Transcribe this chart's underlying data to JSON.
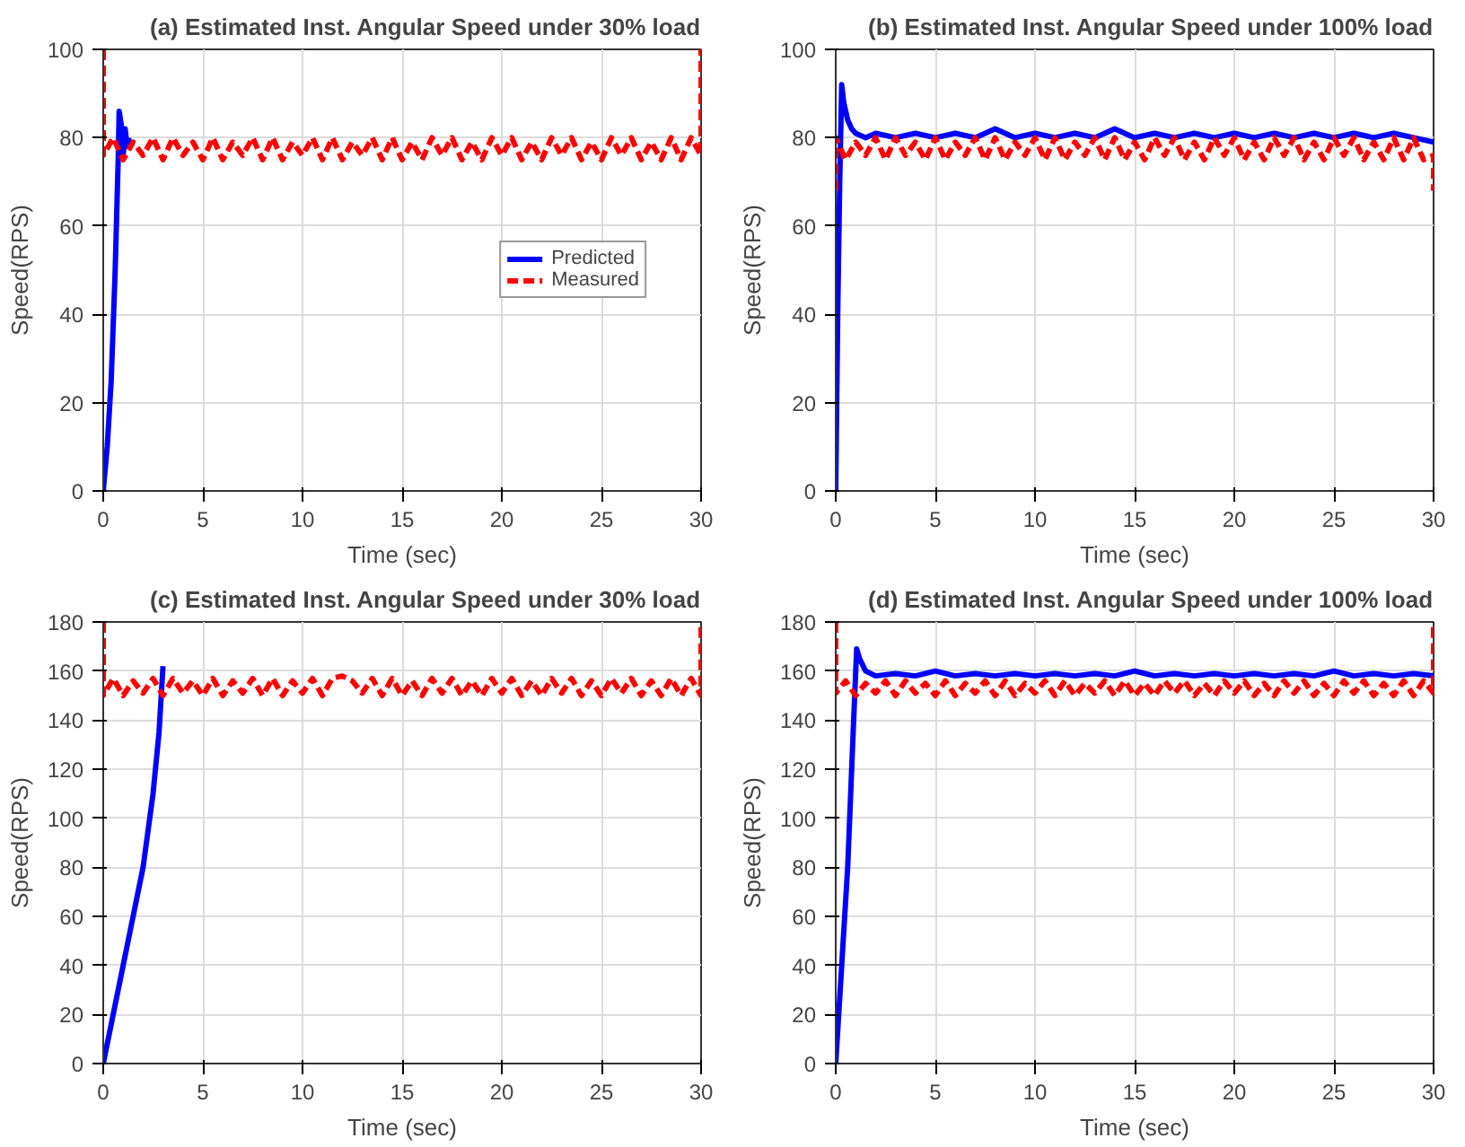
{
  "chart_data": [
    {
      "type": "line",
      "title": "(a) Estimated Inst. Angular Speed under 30% load",
      "xlabel": "Time (sec)",
      "ylabel": "Speed(RPS)",
      "xlim": [
        0,
        30
      ],
      "ylim": [
        0,
        100
      ],
      "xticks": [
        0,
        5,
        10,
        15,
        20,
        25,
        30
      ],
      "yticks": [
        0,
        20,
        40,
        60,
        80,
        100
      ],
      "grid": true,
      "legend": "right",
      "series": [
        {
          "name": "Predicted",
          "color": "#0000ff",
          "line_style": "solid",
          "x": [
            0,
            0.2,
            0.4,
            0.6,
            0.75,
            0.8,
            0.9,
            1,
            1.1,
            1.2,
            1.3
          ],
          "values": [
            0,
            10,
            25,
            50,
            75,
            86,
            83,
            76,
            82,
            78,
            80
          ]
        },
        {
          "name": "Measured",
          "color": "#ff0000",
          "line_style": "dashed",
          "x": [
            0,
            0,
            0.5,
            1,
            1.5,
            2,
            2.5,
            3,
            3.5,
            4,
            4.5,
            5,
            5.5,
            6,
            6.5,
            7,
            7.5,
            8,
            8.5,
            9,
            9.5,
            10,
            10.5,
            11,
            11.5,
            12,
            12.5,
            13,
            13.5,
            14,
            14.5,
            15,
            15.5,
            16,
            16.5,
            17,
            17.5,
            18,
            18.5,
            19,
            19.5,
            20,
            20.5,
            21,
            21.5,
            22,
            22.5,
            23,
            23.5,
            24,
            24.5,
            25,
            25.5,
            26,
            26.5,
            27,
            27.5,
            28,
            28.5,
            29,
            29.5,
            30,
            30
          ],
          "values": [
            100,
            76,
            80,
            75,
            79,
            76,
            80,
            75,
            80,
            76,
            79,
            75,
            80,
            75,
            79,
            76,
            80,
            75,
            80,
            75,
            79,
            76,
            80,
            75,
            80,
            75,
            79,
            76,
            80,
            75,
            80,
            75,
            79,
            75,
            80,
            76,
            80,
            75,
            79,
            75,
            80,
            76,
            80,
            75,
            79,
            75,
            80,
            76,
            80,
            75,
            79,
            75,
            80,
            76,
            80,
            75,
            79,
            75,
            80,
            75,
            80,
            76,
            100
          ]
        }
      ]
    },
    {
      "type": "line",
      "title": "(b) Estimated Inst. Angular Speed under 100% load",
      "xlabel": "Time (sec)",
      "ylabel": "Speed(RPS)",
      "xlim": [
        0,
        30
      ],
      "ylim": [
        0,
        100
      ],
      "xticks": [
        0,
        5,
        10,
        15,
        20,
        25,
        30
      ],
      "yticks": [
        0,
        20,
        40,
        60,
        80,
        100
      ],
      "grid": true,
      "series": [
        {
          "color": "#0000ff",
          "line_style": "solid",
          "x": [
            0,
            0.1,
            0.2,
            0.3,
            0.4,
            0.6,
            0.8,
            1,
            1.5,
            2,
            3,
            4,
            5,
            6,
            7,
            8,
            9,
            10,
            11,
            12,
            13,
            14,
            15,
            16,
            17,
            18,
            19,
            20,
            21,
            22,
            23,
            24,
            25,
            26,
            27,
            28,
            29,
            30
          ],
          "values": [
            0,
            40,
            70,
            92,
            88,
            84,
            82,
            81,
            80,
            81,
            80,
            81,
            80,
            81,
            80,
            82,
            80,
            81,
            80,
            81,
            80,
            82,
            80,
            81,
            80,
            81,
            80,
            81,
            80,
            81,
            80,
            81,
            80,
            81,
            80,
            81,
            80,
            79
          ]
        },
        {
          "color": "#ff0000",
          "line_style": "dashed",
          "x": [
            0,
            0,
            0.5,
            1,
            1.5,
            2,
            2.5,
            3,
            3.5,
            4,
            4.5,
            5,
            5.5,
            6,
            6.5,
            7,
            7.5,
            8,
            8.5,
            9,
            9.5,
            10,
            10.5,
            11,
            11.5,
            12,
            12.5,
            13,
            13.5,
            14,
            14.5,
            15,
            15.5,
            16,
            16.5,
            17,
            17.5,
            18,
            18.5,
            19,
            19.5,
            20,
            20.5,
            21,
            21.5,
            22,
            22.5,
            23,
            23.5,
            24,
            24.5,
            25,
            25.5,
            26,
            26.5,
            27,
            27.5,
            28,
            28.5,
            29,
            29.5,
            30,
            30
          ],
          "values": [
            68,
            80,
            75,
            79,
            76,
            80,
            75,
            80,
            76,
            79,
            75,
            80,
            75,
            79,
            76,
            80,
            75,
            80,
            75,
            79,
            76,
            80,
            75,
            80,
            75,
            79,
            76,
            80,
            75,
            80,
            75,
            79,
            75,
            80,
            76,
            80,
            75,
            79,
            75,
            80,
            76,
            80,
            75,
            79,
            75,
            80,
            76,
            80,
            75,
            79,
            75,
            80,
            76,
            80,
            75,
            79,
            75,
            80,
            75,
            80,
            75,
            76,
            68
          ]
        }
      ]
    },
    {
      "type": "line",
      "title": "(c) Estimated Inst. Angular Speed under 30% load",
      "xlabel": "Time (sec)",
      "ylabel": "Speed(RPS)",
      "xlim": [
        0,
        30
      ],
      "ylim": [
        0,
        180
      ],
      "xticks": [
        0,
        5,
        10,
        15,
        20,
        25,
        30
      ],
      "yticks": [
        0,
        20,
        40,
        60,
        80,
        100,
        120,
        140,
        160,
        180
      ],
      "grid": true,
      "series": [
        {
          "color": "#0000ff",
          "line_style": "solid",
          "x": [
            0,
            0.5,
            1,
            1.5,
            2,
            2.5,
            2.8,
            3
          ],
          "values": [
            0,
            20,
            40,
            60,
            80,
            110,
            135,
            162
          ]
        },
        {
          "color": "#ff0000",
          "line_style": "dashed",
          "x": [
            0,
            0,
            0.5,
            1,
            1.5,
            2,
            2.5,
            3,
            3.5,
            4,
            4.5,
            5,
            5.5,
            6,
            6.5,
            7,
            7.5,
            8,
            8.5,
            9,
            9.5,
            10,
            10.5,
            11,
            11.5,
            12,
            12.5,
            13,
            13.5,
            14,
            14.5,
            15,
            15.5,
            16,
            16.5,
            17,
            17.5,
            18,
            18.5,
            19,
            19.5,
            20,
            20.5,
            21,
            21.5,
            22,
            22.5,
            23,
            23.5,
            24,
            24.5,
            25,
            25.5,
            26,
            26.5,
            27,
            27.5,
            28,
            28.5,
            29,
            29.5,
            30,
            30
          ],
          "values": [
            180,
            150,
            157,
            150,
            156,
            151,
            157,
            150,
            157,
            151,
            156,
            150,
            157,
            150,
            156,
            151,
            157,
            150,
            157,
            150,
            156,
            151,
            157,
            150,
            157,
            158,
            156,
            151,
            157,
            150,
            157,
            150,
            156,
            150,
            157,
            151,
            157,
            150,
            156,
            150,
            157,
            151,
            157,
            150,
            156,
            150,
            157,
            151,
            157,
            150,
            156,
            150,
            157,
            151,
            157,
            150,
            156,
            150,
            157,
            150,
            157,
            150,
            180
          ]
        }
      ]
    },
    {
      "type": "line",
      "title": "(d) Estimated Inst. Angular Speed under 100% load",
      "xlabel": "Time (sec)",
      "ylabel": "Speed(RPS)",
      "xlim": [
        0,
        30
      ],
      "ylim": [
        0,
        180
      ],
      "xticks": [
        0,
        5,
        10,
        15,
        20,
        25,
        30
      ],
      "yticks": [
        0,
        20,
        40,
        60,
        80,
        100,
        120,
        140,
        160,
        180
      ],
      "grid": true,
      "series": [
        {
          "color": "#0000ff",
          "line_style": "solid",
          "x": [
            0,
            0.3,
            0.6,
            0.9,
            1.05,
            1.2,
            1.5,
            2,
            3,
            4,
            5,
            6,
            7,
            8,
            9,
            10,
            11,
            12,
            13,
            14,
            15,
            16,
            17,
            18,
            19,
            20,
            21,
            22,
            23,
            24,
            25,
            26,
            27,
            28,
            29,
            30
          ],
          "values": [
            0,
            40,
            80,
            140,
            169,
            165,
            160,
            158,
            159,
            158,
            160,
            158,
            159,
            158,
            159,
            158,
            159,
            158,
            159,
            158,
            160,
            158,
            159,
            158,
            159,
            158,
            159,
            158,
            159,
            158,
            160,
            158,
            159,
            158,
            159,
            158
          ]
        },
        {
          "color": "#ff0000",
          "line_style": "dashed",
          "x": [
            0,
            0,
            0.5,
            1,
            1.5,
            2,
            2.5,
            3,
            3.5,
            4,
            4.5,
            5,
            5.5,
            6,
            6.5,
            7,
            7.5,
            8,
            8.5,
            9,
            9.5,
            10,
            10.5,
            11,
            11.5,
            12,
            12.5,
            13,
            13.5,
            14,
            14.5,
            15,
            15.5,
            16,
            16.5,
            17,
            17.5,
            18,
            18.5,
            19,
            19.5,
            20,
            20.5,
            21,
            21.5,
            22,
            22.5,
            23,
            23.5,
            24,
            24.5,
            25,
            25.5,
            26,
            26.5,
            27,
            27.5,
            28,
            28.5,
            29,
            29.5,
            30,
            30
          ],
          "values": [
            180,
            151,
            156,
            150,
            155,
            151,
            156,
            150,
            156,
            151,
            155,
            150,
            156,
            150,
            155,
            151,
            156,
            150,
            156,
            150,
            155,
            151,
            156,
            150,
            156,
            150,
            155,
            151,
            156,
            150,
            156,
            150,
            155,
            150,
            156,
            151,
            156,
            150,
            155,
            150,
            156,
            151,
            156,
            150,
            155,
            150,
            156,
            151,
            156,
            150,
            155,
            150,
            156,
            151,
            156,
            150,
            155,
            150,
            156,
            150,
            156,
            151,
            180
          ]
        }
      ]
    }
  ]
}
